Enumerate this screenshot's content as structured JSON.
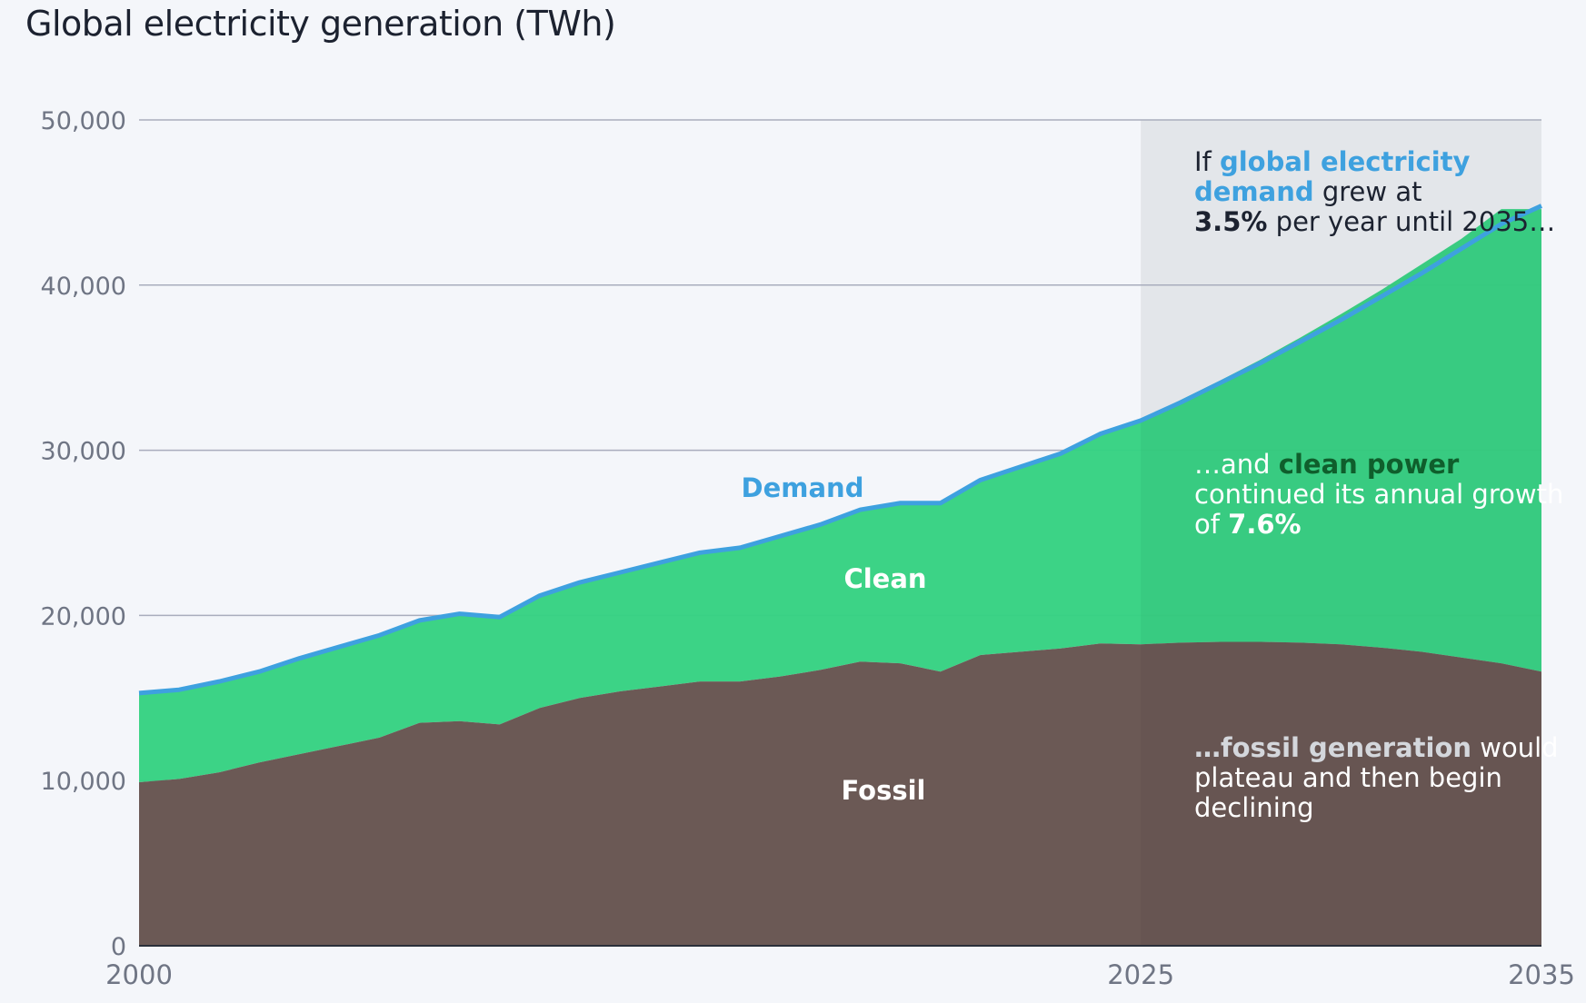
{
  "chart_data": {
    "type": "area",
    "title": "Global electricity generation (TWh)",
    "xlabel": "",
    "ylabel": "",
    "ylim": [
      0,
      50000
    ],
    "xlim": [
      2000,
      2035
    ],
    "y_ticks": [
      "0",
      "10,000",
      "20,000",
      "30,000",
      "40,000",
      "50,000"
    ],
    "x_ticks": [
      "2000",
      "2025",
      "2035"
    ],
    "projection_start": 2025,
    "grid": true,
    "x": [
      2000,
      2001,
      2002,
      2003,
      2004,
      2005,
      2006,
      2007,
      2008,
      2009,
      2010,
      2011,
      2012,
      2013,
      2014,
      2015,
      2016,
      2017,
      2018,
      2019,
      2020,
      2021,
      2022,
      2023,
      2024,
      2025,
      2026,
      2027,
      2028,
      2029,
      2030,
      2031,
      2032,
      2033,
      2034,
      2035
    ],
    "series": [
      {
        "name": "Fossil",
        "color": "#6b5955",
        "values": [
          9900,
          10100,
          10500,
          11100,
          11600,
          12100,
          12600,
          13500,
          13600,
          13400,
          14400,
          15000,
          15400,
          15700,
          16000,
          16000,
          16300,
          16700,
          17200,
          17100,
          16600,
          17600,
          17800,
          18000,
          18300,
          18250,
          18350,
          18400,
          18400,
          18350,
          18250,
          18050,
          17800,
          17450,
          17100,
          16600
        ]
      },
      {
        "name": "Clean",
        "color": "#36d282",
        "values": [
          5400,
          5400,
          5500,
          5500,
          5800,
          6000,
          6200,
          6200,
          6500,
          6500,
          6800,
          7000,
          7200,
          7500,
          7800,
          8100,
          8500,
          8800,
          9200,
          9700,
          10200,
          10600,
          11200,
          11800,
          12700,
          13600,
          14700,
          15850,
          17100,
          18500,
          20000,
          21650,
          23450,
          25350,
          27500,
          28000
        ]
      },
      {
        "name": "Demand",
        "color": "#3ea1df",
        "values": [
          15300,
          15500,
          16000,
          16600,
          17400,
          18100,
          18800,
          19700,
          20100,
          19900,
          21200,
          22000,
          22600,
          23200,
          23800,
          24100,
          24800,
          25500,
          26400,
          26800,
          26800,
          28200,
          29000,
          29800,
          31000,
          31800,
          32900,
          34100,
          35300,
          36600,
          37900,
          39300,
          40700,
          42200,
          43700,
          44800
        ]
      }
    ],
    "annotations": {
      "demand": {
        "p1": "If ",
        "h1": "global electricity demand",
        "p2": " grew at ",
        "h2": "3.5%",
        "p3": " per year until 2035…"
      },
      "clean": {
        "p1": "…and ",
        "h1": "clean power",
        "p2": " continued its annual growth of ",
        "h2": "7.6%"
      },
      "fossil": {
        "h1": "…fossil generation",
        "p1": " would plateau and then begin declining"
      }
    }
  }
}
